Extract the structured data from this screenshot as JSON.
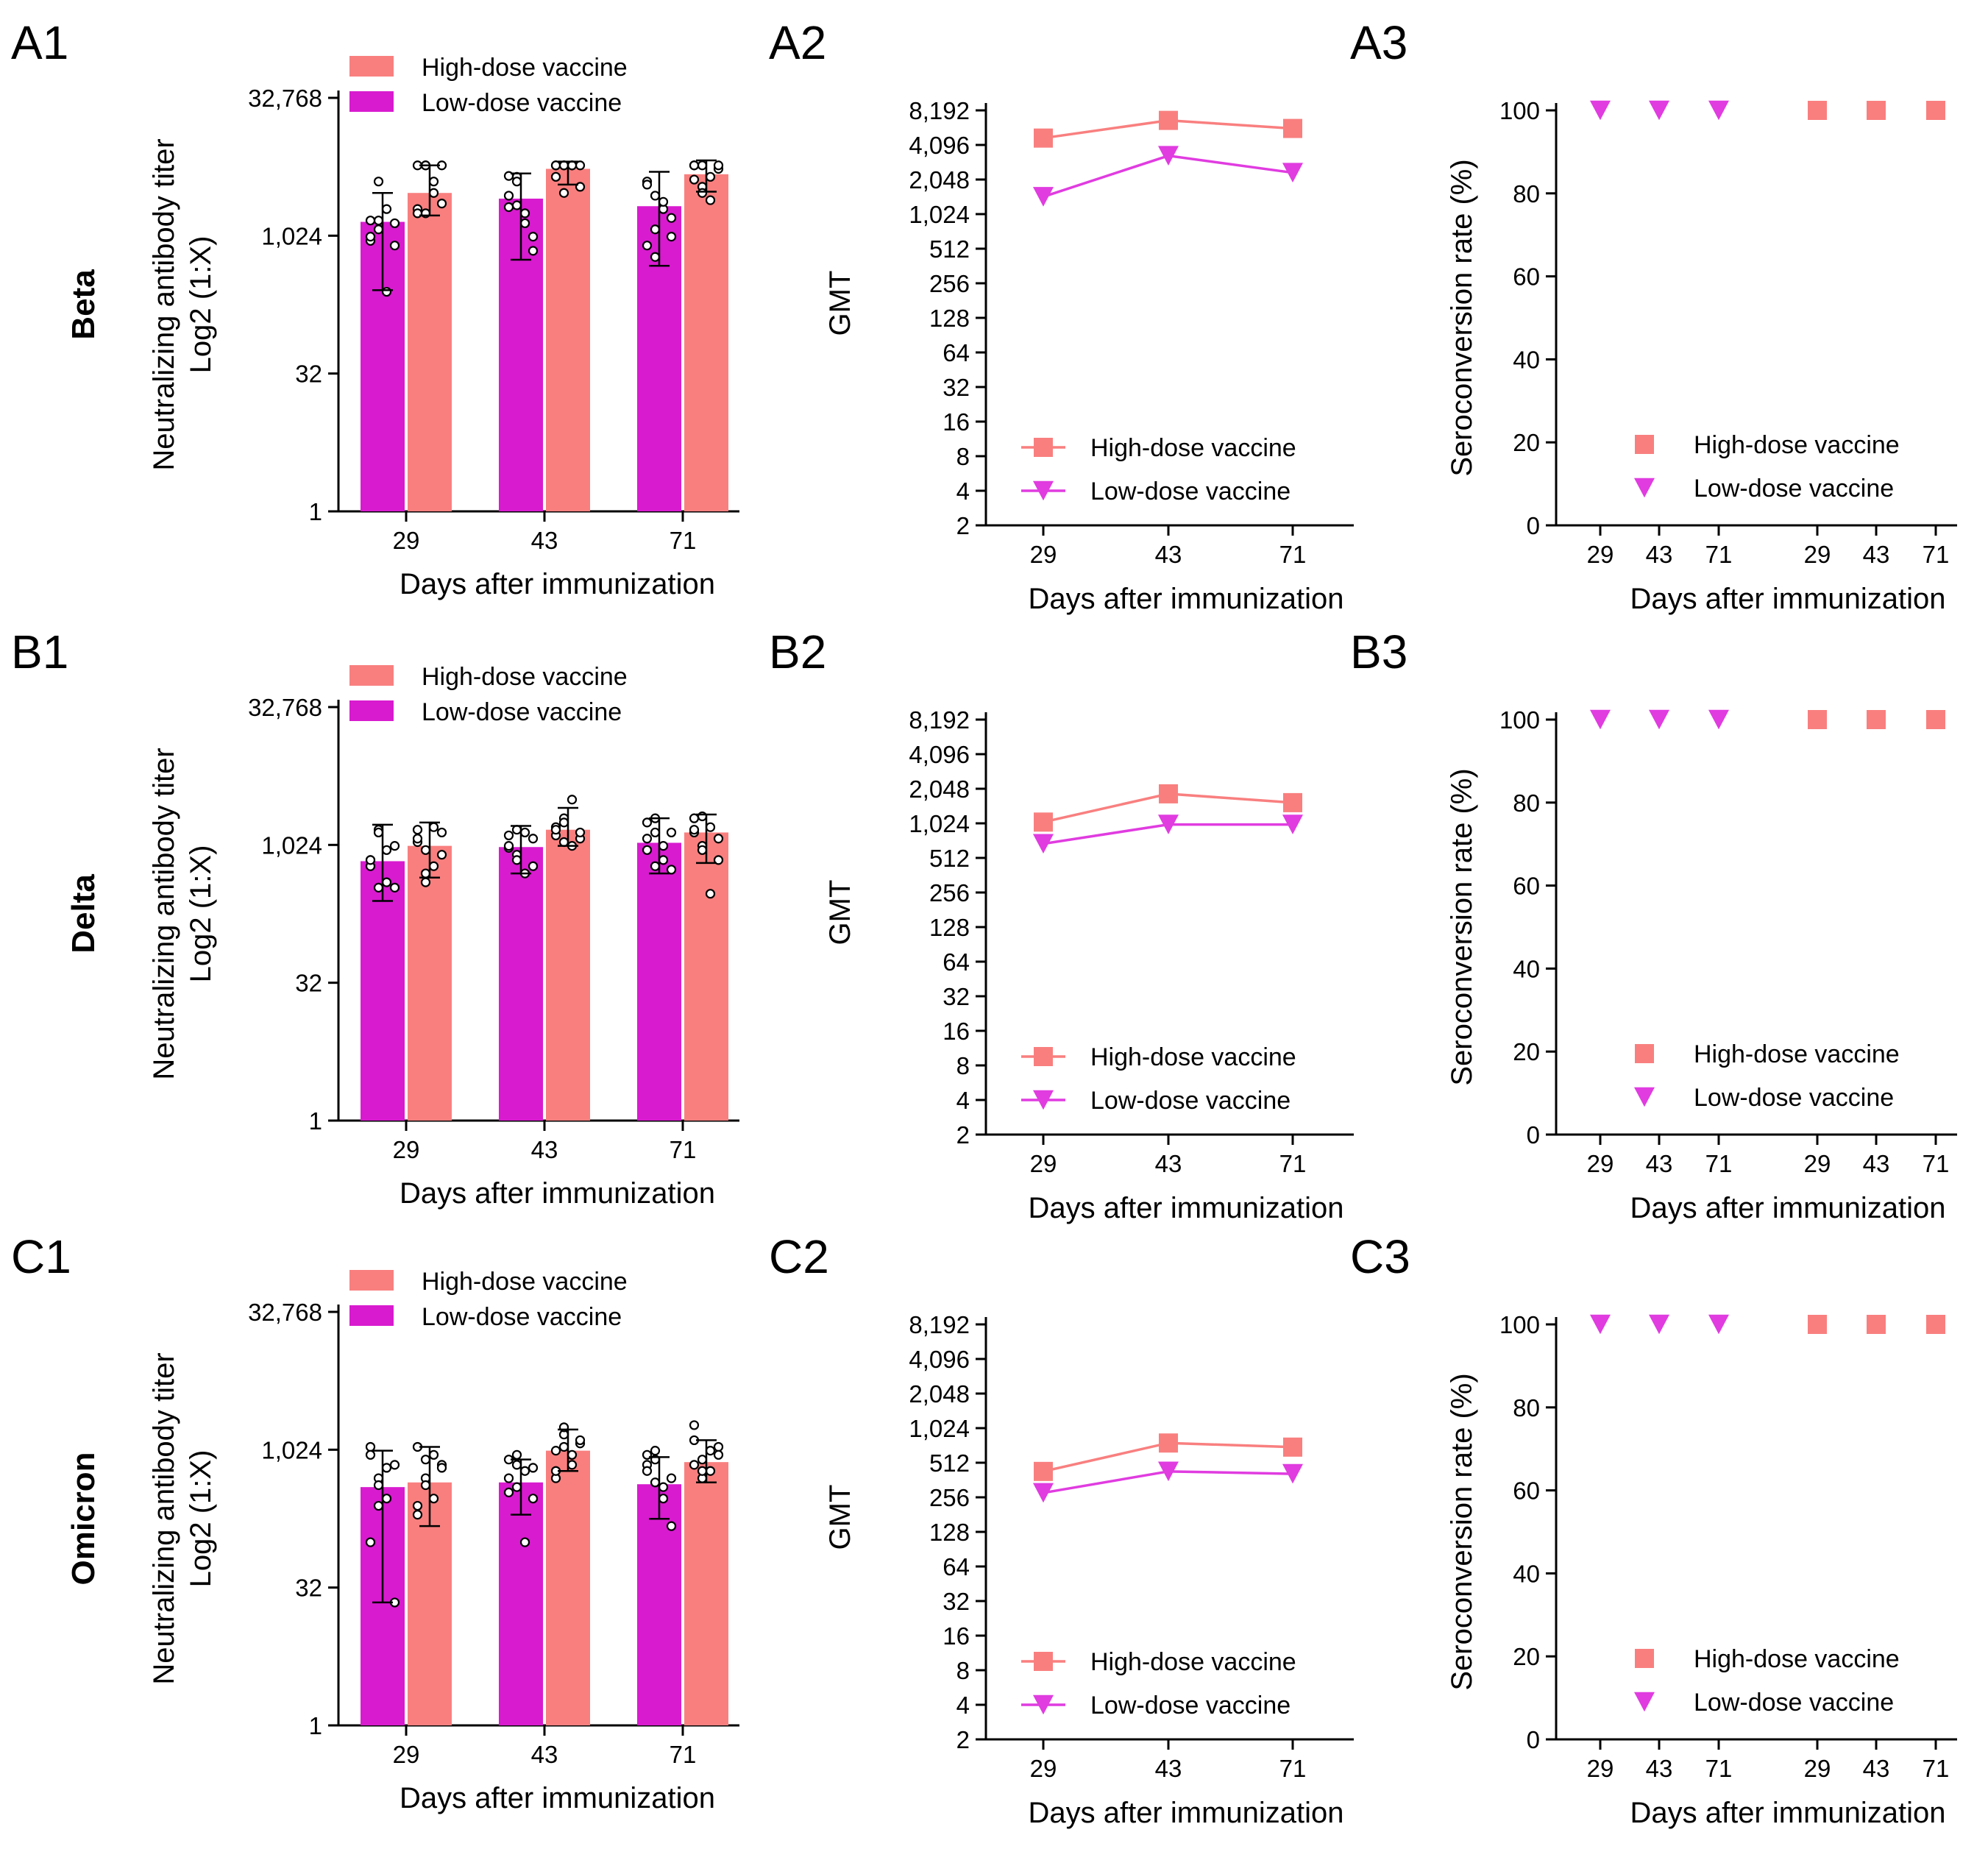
{
  "figure": {
    "row_labels": [
      "Beta",
      "Delta",
      "Omicron"
    ],
    "panel_labels": [
      "A1",
      "A2",
      "A3",
      "B1",
      "B2",
      "B3",
      "C1",
      "C2",
      "C3"
    ]
  },
  "colors": {
    "high_dose": "#F97F7F",
    "low_dose": "#D81BCF",
    "low_dose_line": "#E03CE0",
    "axis": "#000000"
  },
  "legend": {
    "high": "High-dose vaccine",
    "low": "Low-dose vaccine"
  },
  "chart_data": [
    {
      "id": "A1",
      "row": 0,
      "variant": "Beta",
      "type": "bar",
      "title": "",
      "xlabel": "Days after immunization",
      "ylabel_line1": "Neutralizing antibody titer",
      "ylabel_line2": "Log2 (1:X)",
      "yscale": "log2",
      "ylim": [
        1,
        32768
      ],
      "yticks": [
        1,
        32,
        1024,
        32768
      ],
      "ytick_labels": [
        "1",
        "32",
        "1,024",
        "32,768"
      ],
      "categories": [
        "29",
        "43",
        "71"
      ],
      "series": [
        {
          "name": "Low-dose vaccine",
          "values": [
            1450,
            2600,
            2150
          ],
          "err_low": [
            260,
            560,
            480
          ],
          "err_high": [
            3000,
            4900,
            5100
          ],
          "points": [
            [
              900,
              1500,
              250,
              1400,
              1000,
              4000,
              2000,
              800,
              1500,
              1200
            ],
            [
              2100,
              4500,
              1400,
              700,
              2800,
              4000,
              1800,
              1000,
              4600,
              2200
            ],
            [
              4000,
              1200,
              2000,
              1600,
              800,
              2800,
              2400,
              1000,
              3700,
              600
            ]
          ]
        },
        {
          "name": "High-dose vaccine",
          "values": [
            3000,
            5500,
            4800
          ],
          "err_low": [
            1700,
            3700,
            3100
          ],
          "err_high": [
            6000,
            6600,
            6800
          ],
          "points": [
            [
              6000,
              1800,
              3000,
              2300,
              2000,
              6000,
              4000,
              6000,
              1800,
              6000
            ],
            [
              6000,
              3000,
              6000,
              6000,
              4500,
              6000,
              6000,
              3500,
              6000,
              6000
            ],
            [
              6000,
              3500,
              4500,
              5500,
              6000,
              3000,
              2500,
              6000,
              4200,
              6000
            ]
          ]
        }
      ]
    },
    {
      "id": "A2",
      "row": 0,
      "variant": "Beta",
      "type": "line",
      "xlabel": "Days after immunization",
      "ylabel": "GMT",
      "yscale": "log2",
      "ylim": [
        2,
        8192
      ],
      "ytick_labels": [
        "2",
        "4",
        "8",
        "16",
        "32",
        "64",
        "128",
        "256",
        "512",
        "1,024",
        "2,048",
        "4,096",
        "8,192"
      ],
      "categories": [
        "29",
        "43",
        "71"
      ],
      "series": [
        {
          "name": "High-dose vaccine",
          "marker": "square",
          "values": [
            4700,
            6700,
            5700
          ]
        },
        {
          "name": "Low-dose vaccine",
          "marker": "triangle-down",
          "values": [
            1450,
            3300,
            2350
          ]
        }
      ]
    },
    {
      "id": "A3",
      "row": 0,
      "variant": "Beta",
      "type": "scatter",
      "xlabel": "Days after immunization",
      "ylabel": "Seroconversion rate (%)",
      "ylim": [
        0,
        100
      ],
      "yticks": [
        0,
        20,
        40,
        60,
        80,
        100
      ],
      "categories": [
        "29",
        "43",
        "71",
        "29",
        "43",
        "71"
      ],
      "series": [
        {
          "name": "Low-dose vaccine",
          "marker": "triangle-down",
          "positions": [
            0,
            1,
            2
          ],
          "values": [
            100,
            100,
            100
          ]
        },
        {
          "name": "High-dose vaccine",
          "marker": "square",
          "positions": [
            3,
            4,
            5
          ],
          "values": [
            100,
            100,
            100
          ]
        }
      ]
    },
    {
      "id": "B1",
      "row": 1,
      "variant": "Delta",
      "type": "bar",
      "xlabel": "Days after immunization",
      "ylabel_line1": "Neutralizing antibody titer",
      "ylabel_line2": "Log2 (1:X)",
      "yscale": "log2",
      "ylim": [
        1,
        32768
      ],
      "yticks": [
        1,
        32,
        1024,
        32768
      ],
      "ytick_labels": [
        "1",
        "32",
        "1,024",
        "32,768"
      ],
      "categories": [
        "29",
        "43",
        "71"
      ],
      "series": [
        {
          "name": "Low-dose vaccine",
          "values": [
            680,
            970,
            1080
          ],
          "err_low": [
            250,
            500,
            500
          ],
          "err_high": [
            1700,
            1650,
            2000
          ],
          "points": [
            [
              700,
              1500,
              900,
              350,
              600,
              1400,
              400,
              1000,
              700,
              350
            ],
            [
              1300,
              800,
              1400,
              600,
              950,
              1500,
              500,
              1200,
              1000,
              700
            ],
            [
              1800,
              1400,
              1000,
              550,
              1200,
              2000,
              700,
              1400,
              900,
              600
            ]
          ]
        },
        {
          "name": "High-dose vaccine",
          "values": [
            1000,
            1500,
            1400
          ],
          "err_low": [
            450,
            1000,
            650
          ],
          "err_high": [
            1800,
            2600,
            2200
          ],
          "points": [
            [
              1500,
              900,
              600,
              1400,
              1100,
              400,
              1600,
              800,
              1200,
              500
            ],
            [
              1300,
              2000,
              3200,
              1200,
              1600,
              1800,
              1000,
              1400,
              1500,
              1100
            ],
            [
              2000,
              1000,
              1600,
              700,
              1400,
              2100,
              300,
              1200,
              1500,
              900
            ]
          ]
        }
      ]
    },
    {
      "id": "B2",
      "row": 1,
      "variant": "Delta",
      "type": "line",
      "xlabel": "Days after immunization",
      "ylabel": "GMT",
      "yscale": "log2",
      "ylim": [
        2,
        8192
      ],
      "ytick_labels": [
        "2",
        "4",
        "8",
        "16",
        "32",
        "64",
        "128",
        "256",
        "512",
        "1,024",
        "2,048",
        "4,096",
        "8,192"
      ],
      "categories": [
        "29",
        "43",
        "71"
      ],
      "series": [
        {
          "name": "High-dose vaccine",
          "marker": "square",
          "values": [
            1050,
            1850,
            1550
          ]
        },
        {
          "name": "Low-dose vaccine",
          "marker": "triangle-down",
          "values": [
            680,
            1000,
            1000
          ]
        }
      ]
    },
    {
      "id": "B3",
      "row": 1,
      "variant": "Delta",
      "type": "scatter",
      "xlabel": "Days after immunization",
      "ylabel": "Seroconversion rate (%)",
      "ylim": [
        0,
        100
      ],
      "yticks": [
        0,
        20,
        40,
        60,
        80,
        100
      ],
      "categories": [
        "29",
        "43",
        "71",
        "29",
        "43",
        "71"
      ],
      "series": [
        {
          "name": "Low-dose vaccine",
          "marker": "triangle-down",
          "positions": [
            0,
            1,
            2
          ],
          "values": [
            100,
            100,
            100
          ]
        },
        {
          "name": "High-dose vaccine",
          "marker": "square",
          "positions": [
            3,
            4,
            5
          ],
          "values": [
            100,
            100,
            100
          ]
        }
      ]
    },
    {
      "id": "C1",
      "row": 2,
      "variant": "Omicron",
      "type": "bar",
      "xlabel": "Days after immunization",
      "ylabel_line1": "Neutralizing antibody titer",
      "ylabel_line2": "Log2 (1:X)",
      "yscale": "log2",
      "ylim": [
        1,
        32768
      ],
      "yticks": [
        1,
        32,
        1024,
        32768
      ],
      "ytick_labels": [
        "1",
        "32",
        "1,024",
        "32,768"
      ],
      "categories": [
        "29",
        "43",
        "71"
      ],
      "series": [
        {
          "name": "Low-dose vaccine",
          "values": [
            400,
            450,
            430
          ],
          "err_low": [
            22,
            200,
            180
          ],
          "err_high": [
            1000,
            800,
            850
          ],
          "points": [
            [
              1100,
              500,
              300,
              700,
              100,
              420,
              650,
              22,
              900,
              250
            ],
            [
              800,
              400,
              600,
              300,
              500,
              900,
              100,
              650,
              350,
              700
            ],
            [
              700,
              1000,
              400,
              150,
              600,
              800,
              300,
              500,
              900,
              450
            ]
          ]
        },
        {
          "name": "High-dose vaccine",
          "values": [
            450,
            1000,
            750
          ],
          "err_low": [
            150,
            600,
            450
          ],
          "err_high": [
            1100,
            1700,
            1300
          ],
          "points": [
            [
              1100,
              500,
              300,
              700,
              200,
              420,
              900,
              650,
              250,
              800
            ],
            [
              1000,
              1500,
              700,
              1200,
              500,
              1800,
              900,
              1300,
              600,
              1100
            ],
            [
              1300,
              800,
              600,
              1100,
              700,
              500,
              1000,
              900,
              1900,
              600
            ]
          ]
        }
      ]
    },
    {
      "id": "C2",
      "row": 2,
      "variant": "Omicron",
      "type": "line",
      "xlabel": "Days after immunization",
      "ylabel": "GMT",
      "yscale": "log2",
      "ylim": [
        2,
        8192
      ],
      "ytick_labels": [
        "2",
        "4",
        "8",
        "16",
        "32",
        "64",
        "128",
        "256",
        "512",
        "1,024",
        "2,048",
        "4,096",
        "8,192"
      ],
      "categories": [
        "29",
        "43",
        "71"
      ],
      "series": [
        {
          "name": "High-dose vaccine",
          "marker": "square",
          "values": [
            430,
            760,
            700
          ]
        },
        {
          "name": "Low-dose vaccine",
          "marker": "triangle-down",
          "values": [
            280,
            430,
            410
          ]
        }
      ]
    },
    {
      "id": "C3",
      "row": 2,
      "variant": "Omicron",
      "type": "scatter",
      "xlabel": "Days after immunization",
      "ylabel": "Seroconversion rate (%)",
      "ylim": [
        0,
        100
      ],
      "yticks": [
        0,
        20,
        40,
        60,
        80,
        100
      ],
      "categories": [
        "29",
        "43",
        "71",
        "29",
        "43",
        "71"
      ],
      "series": [
        {
          "name": "Low-dose vaccine",
          "marker": "triangle-down",
          "positions": [
            0,
            1,
            2
          ],
          "values": [
            100,
            100,
            100
          ]
        },
        {
          "name": "High-dose vaccine",
          "marker": "square",
          "positions": [
            3,
            4,
            5
          ],
          "values": [
            100,
            100,
            100
          ]
        }
      ]
    }
  ]
}
